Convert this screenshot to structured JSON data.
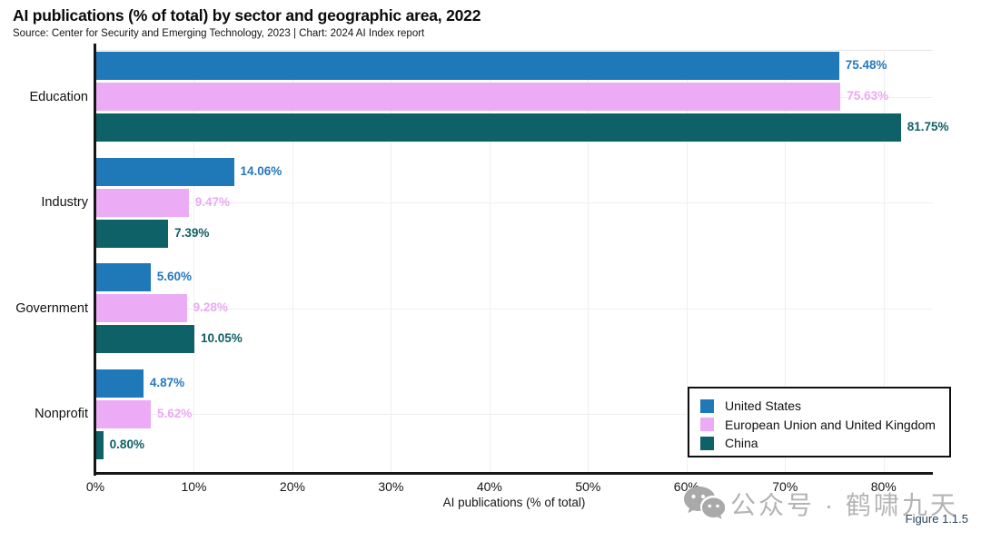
{
  "title": "AI publications (% of total) by sector and geographic area, 2022",
  "source": "Source: Center for Security and Emerging Technology, 2023 | Chart: 2024 AI Index report",
  "figure_label": "Figure 1.1.5",
  "watermark": {
    "icon": "wechat-icon",
    "text": "公众号 · 鹤啸九天"
  },
  "chart_data": {
    "type": "bar",
    "orientation": "horizontal",
    "title": "AI publications (% of total) by sector and geographic area, 2022",
    "xlabel": "AI publications (% of total)",
    "ylabel": "",
    "xlim": [
      0,
      85
    ],
    "grid": true,
    "xticks": [
      0,
      10,
      20,
      30,
      40,
      50,
      60,
      70,
      80
    ],
    "xtick_labels": [
      "0%",
      "10%",
      "20%",
      "30%",
      "40%",
      "50%",
      "60%",
      "70%",
      "80%"
    ],
    "categories": [
      "Education",
      "Industry",
      "Government",
      "Nonprofit"
    ],
    "series": [
      {
        "name": "United States",
        "color": "#1f78b8",
        "label_color": "#2679be",
        "values": [
          75.48,
          14.06,
          5.6,
          4.87
        ],
        "labels": [
          "75.48%",
          "14.06%",
          "5.60%",
          "4.87%"
        ]
      },
      {
        "name": "European Union and United Kingdom",
        "color": "#ebacf5",
        "label_color": "#eca9f2",
        "values": [
          75.63,
          9.47,
          9.28,
          5.62
        ],
        "labels": [
          "75.63%",
          "9.47%",
          "9.28%",
          "5.62%"
        ]
      },
      {
        "name": "China",
        "color": "#0e6166",
        "label_color": "#0d5f65",
        "values": [
          81.75,
          7.39,
          10.05,
          0.8
        ],
        "labels": [
          "81.75%",
          "7.39%",
          "10.05%",
          "0.80%"
        ]
      }
    ],
    "legend": {
      "position": "bottom-right",
      "entries": [
        "United States",
        "European Union and United Kingdom",
        "China"
      ]
    }
  }
}
